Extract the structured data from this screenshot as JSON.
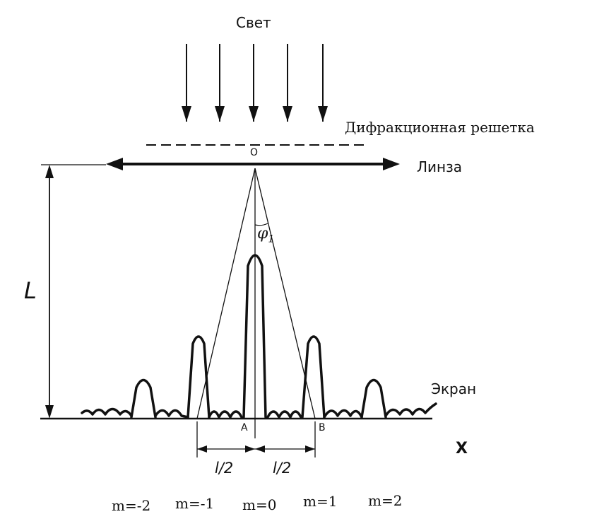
{
  "labels": {
    "light": "Свет",
    "grating": "Дифракционная решетка",
    "lens": "Линза",
    "screen": "Экран",
    "origin": "O",
    "distance": "L",
    "angle": "φ",
    "angle_subscript": "1",
    "point_a": "A",
    "point_b": "B",
    "axis_x": "X",
    "half_left": "l/2",
    "half_right": "l/2"
  },
  "orders": [
    "m=-2",
    "m=-1",
    "m=0",
    "m=1",
    "m=2"
  ],
  "colors": {
    "ink": "#111111",
    "background": "#ffffff"
  }
}
